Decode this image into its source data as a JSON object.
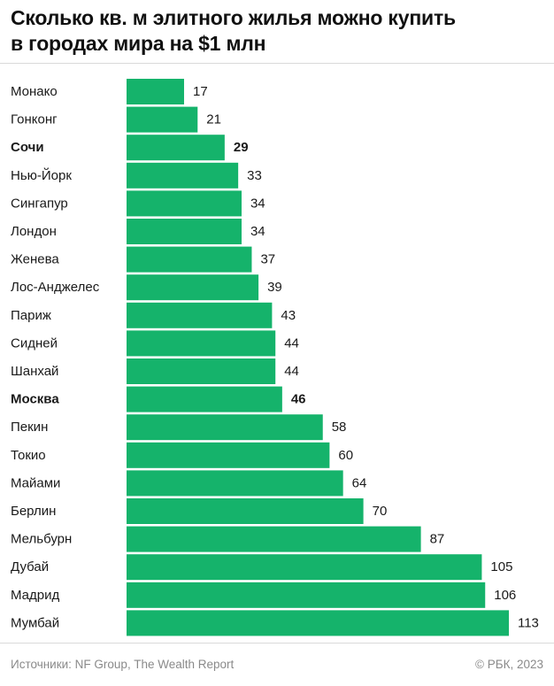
{
  "header": {
    "title_line1": "Сколько кв. м элитного жилья можно купить",
    "title_line2": "в городах мира на $1 млн"
  },
  "footer": {
    "source": "Источники: NF Group, The Wealth Report",
    "copyright": "© РБК, 2023"
  },
  "colors": {
    "bar": "#15b36b",
    "text": "#1a1a1a",
    "muted": "#8a8a8a"
  },
  "chart_data": {
    "type": "bar",
    "orientation": "horizontal",
    "title": "Сколько кв. м элитного жилья можно купить в городах мира на $1 млн",
    "categories": [
      "Монако",
      "Гонконг",
      "Сочи",
      "Нью-Йорк",
      "Сингапур",
      "Лондон",
      "Женева",
      "Лос-Анджелес",
      "Париж",
      "Сидней",
      "Шанхай",
      "Москва",
      "Пекин",
      "Токио",
      "Майами",
      "Берлин",
      "Мельбурн",
      "Дубай",
      "Мадрид",
      "Мумбай"
    ],
    "values": [
      17,
      21,
      29,
      33,
      34,
      34,
      37,
      39,
      43,
      44,
      44,
      46,
      58,
      60,
      64,
      70,
      87,
      105,
      106,
      113
    ],
    "highlighted": [
      "Сочи",
      "Москва"
    ],
    "xlim": [
      0,
      113
    ],
    "grid": false,
    "legend": "none"
  }
}
